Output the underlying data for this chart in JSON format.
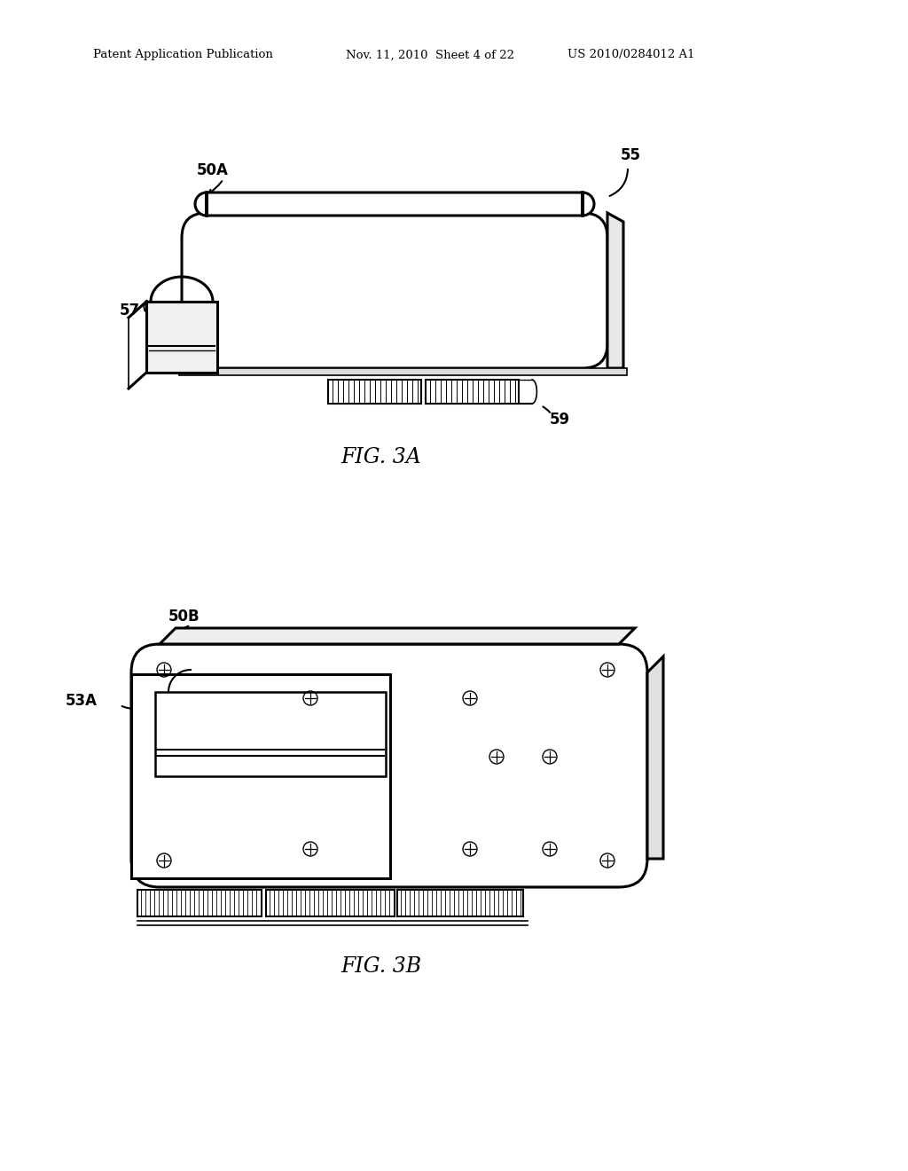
{
  "background_color": "#ffffff",
  "header_left": "Patent Application Publication",
  "header_mid": "Nov. 11, 2010  Sheet 4 of 22",
  "header_right": "US 2010/0284012 A1",
  "fig3a_label": "FIG. 3A",
  "fig3b_label": "FIG. 3B",
  "label_50A": "50A",
  "label_55": "55",
  "label_57": "57",
  "label_59": "59",
  "label_50B": "50B",
  "label_53A": "53A"
}
